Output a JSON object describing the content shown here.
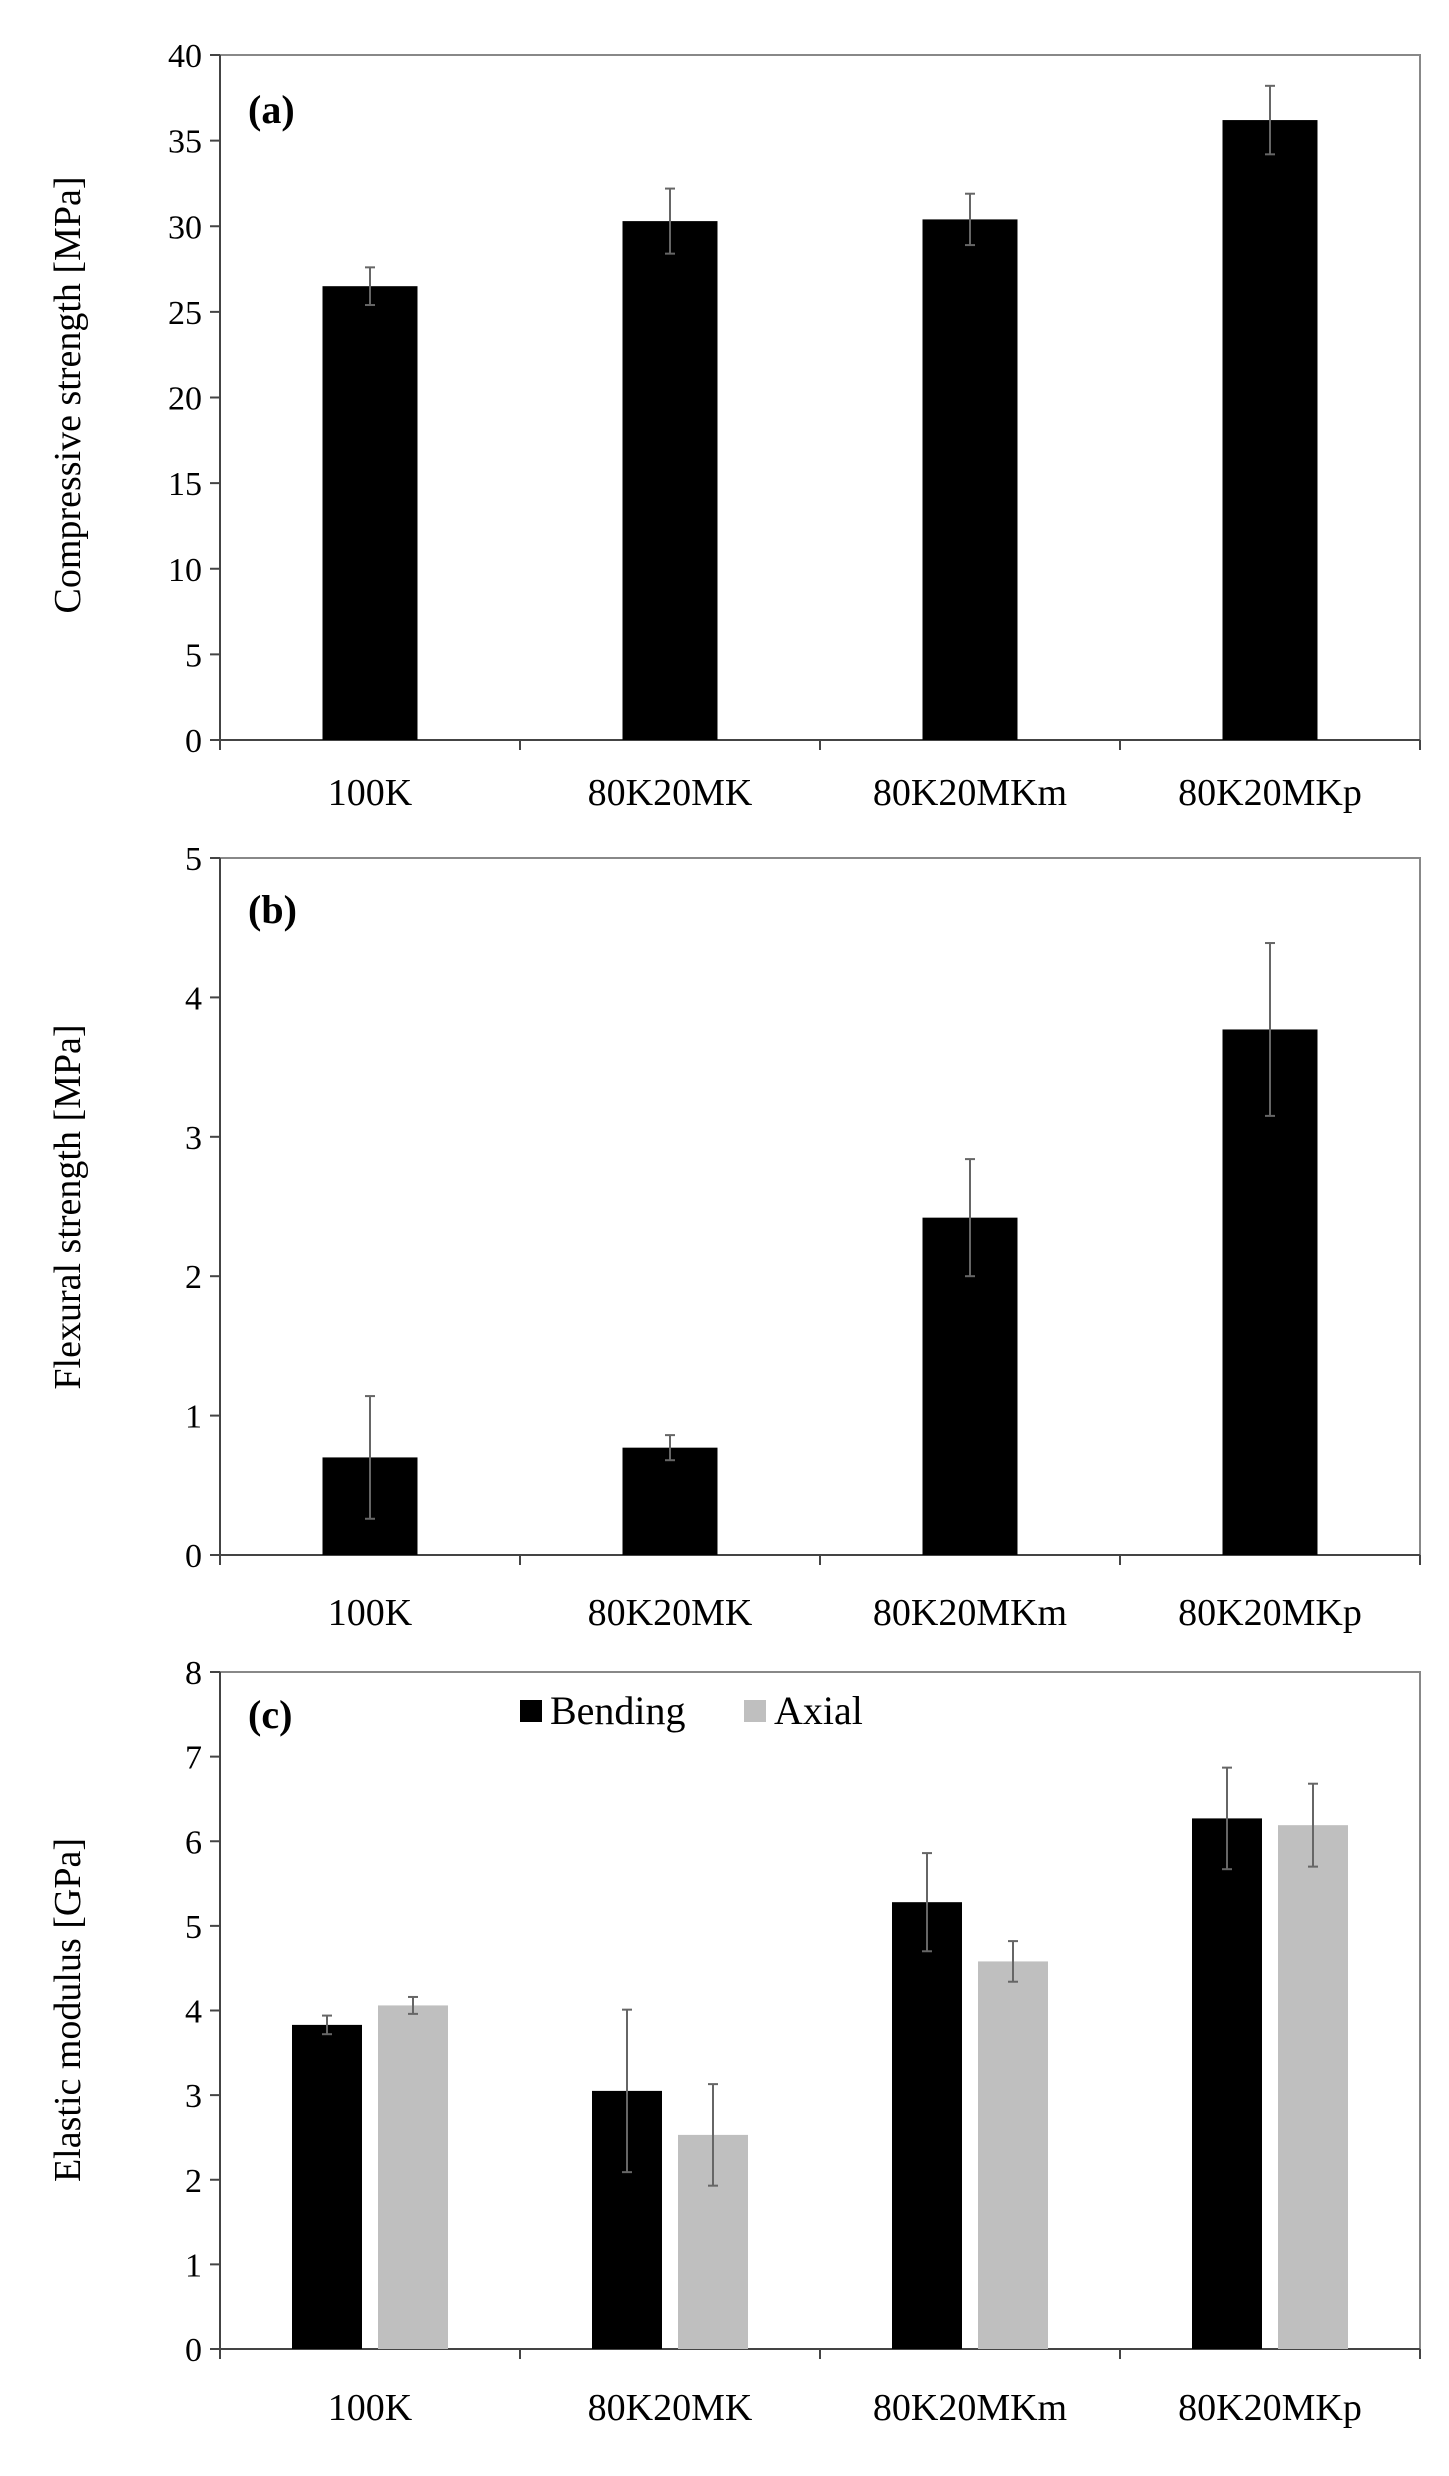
{
  "chart_data": [
    {
      "type": "bar",
      "panel_label": "(a)",
      "ylabel": "Compressive strength [MPa]",
      "categories": [
        "100K",
        "80K20MK",
        "80K20MKm",
        "80K20MKp"
      ],
      "ylim": [
        0,
        40
      ],
      "yticks": [
        0,
        5,
        10,
        15,
        20,
        25,
        30,
        35,
        40
      ],
      "series": [
        {
          "values": [
            26.5,
            30.3,
            30.4,
            36.2
          ],
          "errors": [
            1.1,
            1.9,
            1.5,
            2.0
          ],
          "color": "#000000"
        }
      ]
    },
    {
      "type": "bar",
      "panel_label": "(b)",
      "ylabel": "Flexural strength [MPa]",
      "categories": [
        "100K",
        "80K20MK",
        "80K20MKm",
        "80K20MKp"
      ],
      "ylim": [
        0,
        5
      ],
      "yticks": [
        0,
        1,
        2,
        3,
        4,
        5
      ],
      "series": [
        {
          "values": [
            0.7,
            0.77,
            2.42,
            3.77
          ],
          "errors": [
            0.44,
            0.09,
            0.42,
            0.62
          ],
          "color": "#000000"
        }
      ]
    },
    {
      "type": "bar",
      "panel_label": "(c)",
      "ylabel": "Elastic modulus [GPa]",
      "categories": [
        "100K",
        "80K20MK",
        "80K20MKm",
        "80K20MKp"
      ],
      "ylim": [
        0,
        8
      ],
      "yticks": [
        0,
        1,
        2,
        3,
        4,
        5,
        6,
        7,
        8
      ],
      "legend": "top-center",
      "series": [
        {
          "name": "Bending",
          "values": [
            3.83,
            3.05,
            5.28,
            6.27
          ],
          "errors": [
            0.11,
            0.96,
            0.58,
            0.6
          ],
          "color": "#000000"
        },
        {
          "name": "Axial",
          "values": [
            4.06,
            2.53,
            4.58,
            6.19
          ],
          "errors": [
            0.1,
            0.6,
            0.24,
            0.49
          ],
          "color": "#bfbfbf"
        }
      ]
    }
  ]
}
